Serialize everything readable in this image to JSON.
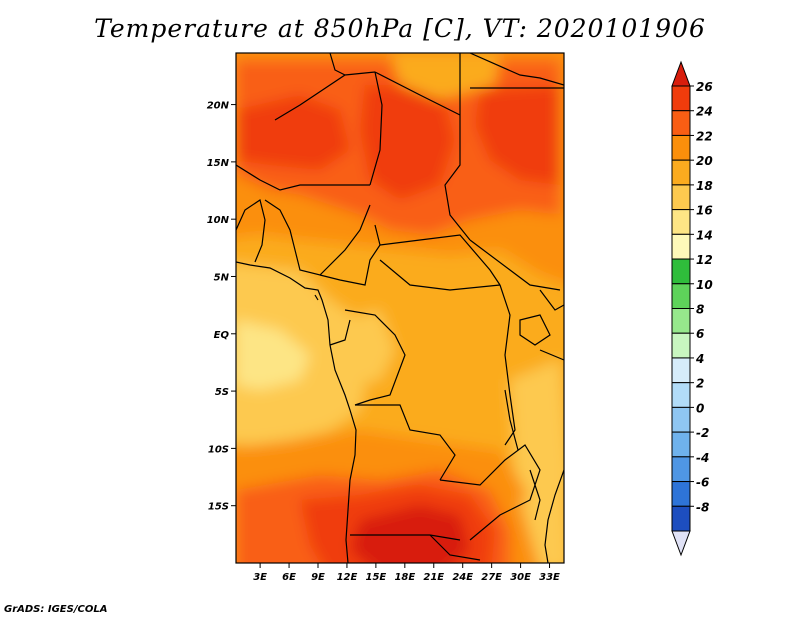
{
  "title": "Temperature at 850hPa [C], VT: 2020101906",
  "credit": "GrADS: IGES/COLA",
  "map": {
    "lat_range": [
      -20,
      24.5
    ],
    "lon_range": [
      0.5,
      34.5
    ],
    "lat_ticks": [
      {
        "value": 20,
        "label": "20N"
      },
      {
        "value": 15,
        "label": "15N"
      },
      {
        "value": 10,
        "label": "10N"
      },
      {
        "value": 5,
        "label": "5N"
      },
      {
        "value": 0,
        "label": "EQ"
      },
      {
        "value": -5,
        "label": "5S"
      },
      {
        "value": -10,
        "label": "10S"
      },
      {
        "value": -15,
        "label": "15S"
      }
    ],
    "lon_ticks": [
      {
        "value": 3,
        "label": "3E"
      },
      {
        "value": 6,
        "label": "6E"
      },
      {
        "value": 9,
        "label": "9E"
      },
      {
        "value": 12,
        "label": "12E"
      },
      {
        "value": 15,
        "label": "15E"
      },
      {
        "value": 18,
        "label": "18E"
      },
      {
        "value": 21,
        "label": "21E"
      },
      {
        "value": 24,
        "label": "24E"
      },
      {
        "value": 27,
        "label": "27E"
      },
      {
        "value": 30,
        "label": "30E"
      },
      {
        "value": 33,
        "label": "33E"
      }
    ]
  },
  "colorbar": {
    "levels": [
      {
        "label": "26",
        "color": "#f03c0c"
      },
      {
        "label": "24",
        "color": "#f95e14"
      },
      {
        "label": "22",
        "color": "#fb8f0b"
      },
      {
        "label": "20",
        "color": "#fbab1f"
      },
      {
        "label": "18",
        "color": "#fdc94f"
      },
      {
        "label": "16",
        "color": "#fde585"
      },
      {
        "label": "14",
        "color": "#fef9b9"
      },
      {
        "label": "12",
        "color": "#2fbd3b"
      },
      {
        "label": "10",
        "color": "#5ed35a"
      },
      {
        "label": "8",
        "color": "#96e88c"
      },
      {
        "label": "6",
        "color": "#c8f6c0"
      },
      {
        "label": "4",
        "color": "#d6ecfa"
      },
      {
        "label": "2",
        "color": "#b2dcf8"
      },
      {
        "label": "0",
        "color": "#8fc6f2"
      },
      {
        "label": "-2",
        "color": "#6fb2ec"
      },
      {
        "label": "-4",
        "color": "#4f96e4"
      },
      {
        "label": "-6",
        "color": "#2e74d8"
      },
      {
        "label": "-8",
        "color": "#1d4ebf"
      }
    ],
    "top_arrow_color": "#d81d0c",
    "bottom_arrow_color": "#0d1372",
    "bottom_end_color": "#e0e2f6"
  },
  "field_colors": {
    "t18": "#fbab1f",
    "t20": "#fb8f0b",
    "t22": "#f95e14",
    "t24": "#f03c0c",
    "t26": "#d81d0c",
    "t16": "#fdc94f",
    "t14": "#fde585"
  }
}
